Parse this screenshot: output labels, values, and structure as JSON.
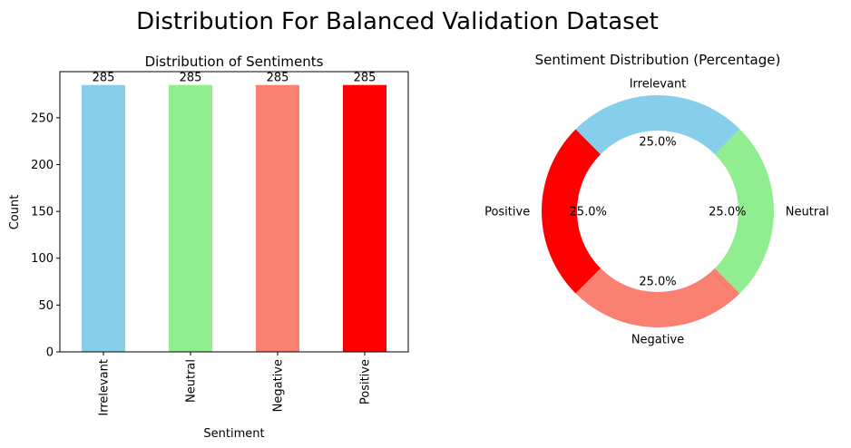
{
  "figure": {
    "title": "Distribution For Balanced Validation Dataset"
  },
  "chart_data": [
    {
      "type": "bar",
      "title": "Distribution of Sentiments",
      "xlabel": "Sentiment",
      "ylabel": "Count",
      "categories": [
        "Irrelevant",
        "Neutral",
        "Negative",
        "Positive"
      ],
      "values": [
        285,
        285,
        285,
        285
      ],
      "data_labels": [
        "285",
        "285",
        "285",
        "285"
      ],
      "colors": [
        "#87CEEB",
        "#90EE90",
        "#FA8072",
        "#FF0000"
      ],
      "ylim": [
        0,
        299.25
      ],
      "yticks": [
        0,
        50,
        100,
        150,
        200,
        250
      ],
      "grid": false
    },
    {
      "type": "pie",
      "style": "donut",
      "title": "Sentiment Distribution (Percentage)",
      "labels": [
        "Positive",
        "Negative",
        "Neutral",
        "Irrelevant"
      ],
      "values": [
        25.0,
        25.0,
        25.0,
        25.0
      ],
      "pct_labels": [
        "25.0%",
        "25.0%",
        "25.0%",
        "25.0%"
      ],
      "colors": [
        "#FF0000",
        "#FA8072",
        "#90EE90",
        "#87CEEB"
      ]
    }
  ]
}
